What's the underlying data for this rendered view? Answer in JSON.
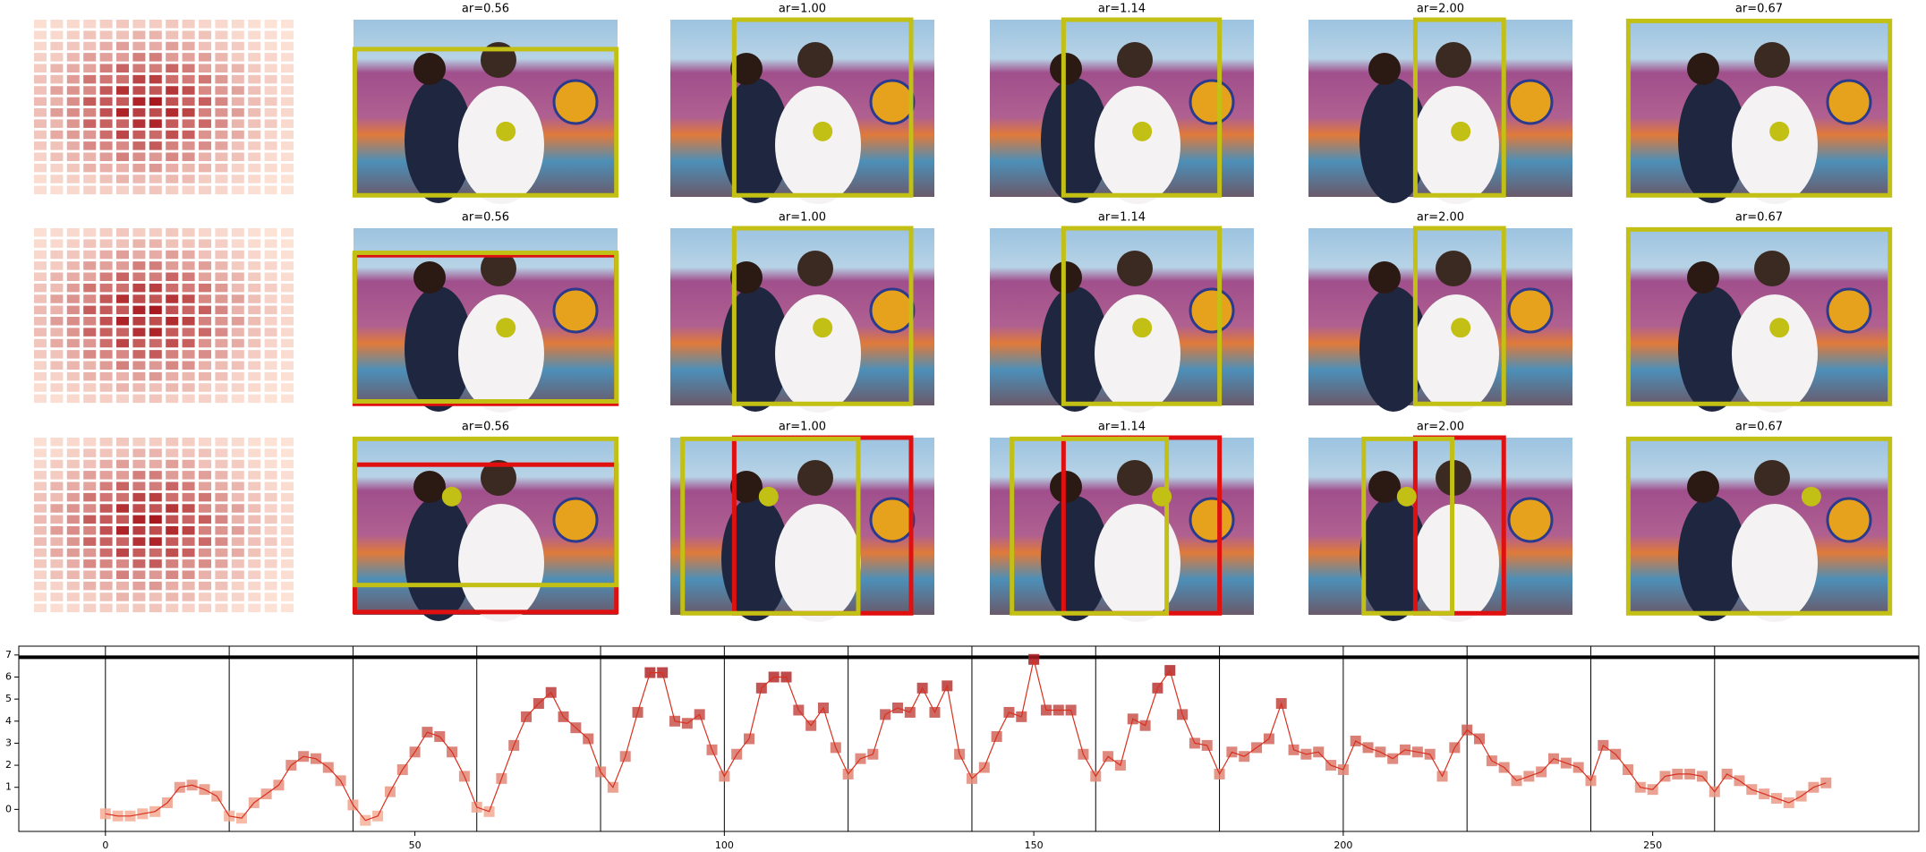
{
  "rows": [
    {
      "titles": [
        "ar=0.56",
        "ar=1.00",
        "ar=1.14",
        "ar=2.00",
        "ar=0.67"
      ]
    },
    {
      "titles": [
        "ar=0.56",
        "ar=1.00",
        "ar=1.14",
        "ar=2.00",
        "ar=0.67"
      ]
    },
    {
      "titles": [
        "ar=0.56",
        "ar=1.00",
        "ar=1.14",
        "ar=2.00",
        "ar=0.67"
      ]
    }
  ],
  "chart_data": {
    "type": "line",
    "x": [
      0,
      2,
      4,
      6,
      8,
      10,
      12,
      14,
      16,
      18,
      20,
      22,
      24,
      26,
      28,
      30,
      32,
      34,
      36,
      38,
      40,
      42,
      44,
      46,
      48,
      50,
      52,
      54,
      56,
      58,
      60,
      62,
      64,
      66,
      68,
      70,
      72,
      74,
      76,
      78,
      80,
      82,
      84,
      86,
      88,
      90,
      92,
      94,
      96,
      98,
      100,
      102,
      104,
      106,
      108,
      110,
      112,
      114,
      116,
      118,
      120,
      122,
      124,
      126,
      128,
      130,
      132,
      134,
      136,
      138,
      140,
      142,
      144,
      146,
      148,
      150,
      152,
      154,
      156,
      158,
      160,
      162,
      164,
      166,
      168,
      170,
      172,
      174,
      176,
      178,
      180,
      182,
      184,
      186,
      188,
      190,
      192,
      194,
      196,
      198,
      200,
      202,
      204,
      206,
      208,
      210,
      212,
      214,
      216,
      218,
      220,
      222,
      224,
      226,
      228,
      230,
      232,
      234,
      236,
      238,
      240,
      242,
      244,
      246,
      248,
      250,
      252,
      254,
      256,
      258,
      260,
      262,
      264,
      266,
      268,
      270,
      272,
      274,
      276,
      278
    ],
    "values": [
      -0.2,
      -0.3,
      -0.3,
      -0.2,
      -0.1,
      0.3,
      1.0,
      1.1,
      0.9,
      0.6,
      -0.3,
      -0.4,
      0.3,
      0.7,
      1.1,
      2.0,
      2.4,
      2.3,
      1.9,
      1.3,
      0.2,
      -0.5,
      -0.3,
      0.8,
      1.8,
      2.6,
      3.5,
      3.3,
      2.6,
      1.5,
      0.1,
      -0.1,
      1.4,
      2.9,
      4.2,
      4.8,
      5.3,
      4.2,
      3.7,
      3.2,
      1.7,
      1.0,
      2.4,
      4.4,
      6.2,
      6.2,
      4.0,
      3.9,
      4.3,
      2.7,
      1.5,
      2.5,
      3.2,
      5.5,
      6.0,
      6.0,
      4.5,
      3.8,
      4.6,
      2.8,
      1.6,
      2.3,
      2.5,
      4.3,
      4.6,
      4.4,
      5.5,
      4.4,
      5.6,
      2.5,
      1.4,
      1.9,
      3.3,
      4.4,
      4.2,
      6.8,
      4.5,
      4.5,
      4.5,
      2.5,
      1.5,
      2.4,
      2.0,
      4.1,
      3.8,
      5.5,
      6.3,
      4.3,
      3.0,
      2.9,
      1.6,
      2.6,
      2.4,
      2.8,
      3.2,
      4.8,
      2.7,
      2.5,
      2.6,
      2.0,
      1.8,
      3.1,
      2.8,
      2.6,
      2.3,
      2.7,
      2.6,
      2.5,
      1.5,
      2.8,
      3.6,
      3.2,
      2.2,
      1.9,
      1.3,
      1.5,
      1.7,
      2.3,
      2.1,
      1.9,
      1.3,
      2.9,
      2.5,
      1.8,
      1.0,
      0.9,
      1.5,
      1.6,
      1.6,
      1.5,
      0.8,
      1.6,
      1.3,
      0.9,
      0.7,
      0.5,
      0.3,
      0.6,
      1.0,
      1.2
    ],
    "color": "#d7301f",
    "marker_colors": [
      "#fcbba1",
      "#a50f15"
    ],
    "xlim": [
      -14,
      293
    ],
    "ylim": [
      -1,
      7.4
    ],
    "xticks": [
      0,
      50,
      100,
      150,
      200,
      250
    ],
    "yticks": [
      0,
      1,
      2,
      3,
      4,
      5,
      6,
      7
    ],
    "vlines": [
      0,
      20,
      40,
      60,
      80,
      100,
      120,
      140,
      160,
      180,
      200,
      220,
      240,
      260
    ],
    "hline": 6.9
  }
}
